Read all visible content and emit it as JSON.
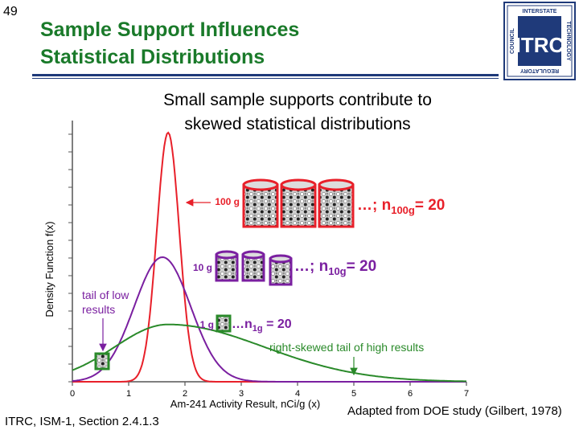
{
  "slide": {
    "number": "49",
    "title_line1": "Sample Support Influences",
    "title_line2": "Statistical Distributions",
    "subtitle_line1": "Small sample supports contribute to",
    "subtitle_line2": "skewed statistical distributions",
    "footer_left": "ITRC, ISM-1, Section 2.4.1.3",
    "footer_right": "Adapted from DOE study (Gilbert, 1978)"
  },
  "logo": {
    "letters": "ITRC",
    "left_text": "COUNCIL",
    "right_text": "TECHNOLOGY",
    "top_text": "INTERSTATE",
    "bottom_text": "REGULATORY",
    "color": "#1f3a7a"
  },
  "colors": {
    "title": "#1a7a2a",
    "red": "#e8202a",
    "purple": "#7a1fa0",
    "green": "#2a8a2a",
    "axis": "#555555"
  },
  "chart_data": {
    "type": "line",
    "xlabel": "Am-241 Activity Result, nCi/g (x)",
    "ylabel": "Density Function f(x)",
    "xlim": [
      0,
      7
    ],
    "x_ticks": [
      "0",
      "1",
      "2",
      "3",
      "4",
      "5",
      "6",
      "7"
    ],
    "grid": false,
    "series": [
      {
        "name": "100 g",
        "color": "#e8202a",
        "mean": 1.7,
        "sd": 0.2,
        "peak": 1.0
      },
      {
        "name": "10 g",
        "color": "#7a1fa0",
        "mean": 1.6,
        "sd": 0.5,
        "peak": 0.5
      },
      {
        "name": "1 g",
        "color": "#2a8a2a",
        "mean": 1.7,
        "sd": 0.95,
        "peak": 0.23,
        "right_skew": 3.6
      }
    ],
    "annotations": {
      "label_100g": "100 g",
      "label_10g": "10 g",
      "label_1g": "1 g",
      "n100_prefix": "…; n",
      "n100_sub": "100g",
      "n100_suffix": "= 20",
      "n10_prefix": "…; n",
      "n10_sub": "10g",
      "n10_suffix": "= 20",
      "n1_prefix": "…n",
      "n1_sub": "1g",
      "n1_suffix": " = 20",
      "tail_low_line1": "tail of low",
      "tail_low_line2": "results",
      "tail_high": "right-skewed tail of high results"
    }
  }
}
